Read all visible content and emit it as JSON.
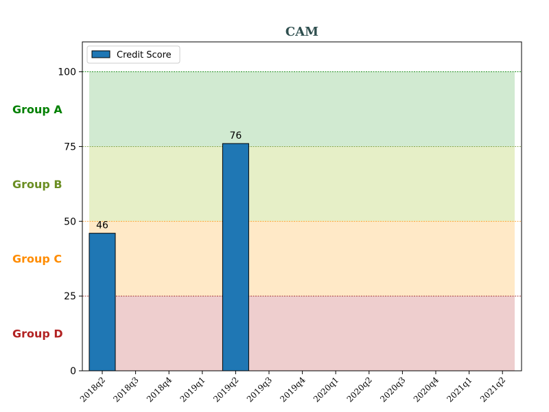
{
  "chart_data": {
    "type": "bar",
    "title": "CAM",
    "xlabel": "",
    "ylabel": "",
    "categories": [
      "2018q2",
      "2018q3",
      "2018q4",
      "2019q1",
      "2019q2",
      "2019q3",
      "2019q4",
      "2020q1",
      "2020q2",
      "2020q3",
      "2020q4",
      "2021q1",
      "2021q2"
    ],
    "series": [
      {
        "name": "Credit Score",
        "values": [
          46,
          null,
          null,
          null,
          76,
          null,
          null,
          null,
          null,
          null,
          null,
          null,
          null
        ],
        "color": "#1f77b4"
      }
    ],
    "data_labels": [
      "46",
      "",
      "",
      "",
      "76",
      "",
      "",
      "",
      "",
      "",
      "",
      "",
      ""
    ],
    "ylim": [
      0,
      110
    ],
    "yticks": [
      0,
      25,
      50,
      75,
      100
    ],
    "legend": {
      "placement": "top-left",
      "entries": [
        "Credit Score"
      ]
    },
    "bands": [
      {
        "label": "Group A",
        "from": 75,
        "to": 100,
        "color": "#2ca02c",
        "label_color": "#008000",
        "line_color": "#008000"
      },
      {
        "label": "Group B",
        "from": 50,
        "to": 75,
        "color": "#8db600",
        "label_color": "#6b8e23",
        "line_color": "#6b8e23"
      },
      {
        "label": "Group C",
        "from": 25,
        "to": 50,
        "color": "#ff9900",
        "label_color": "#ff8c00",
        "line_color": "#ff8c00"
      },
      {
        "label": "Group D",
        "from": 0,
        "to": 25,
        "color": "#b22222",
        "label_color": "#b22222",
        "line_color": "#8b0000"
      }
    ],
    "title_color": "#2f4f4f"
  }
}
